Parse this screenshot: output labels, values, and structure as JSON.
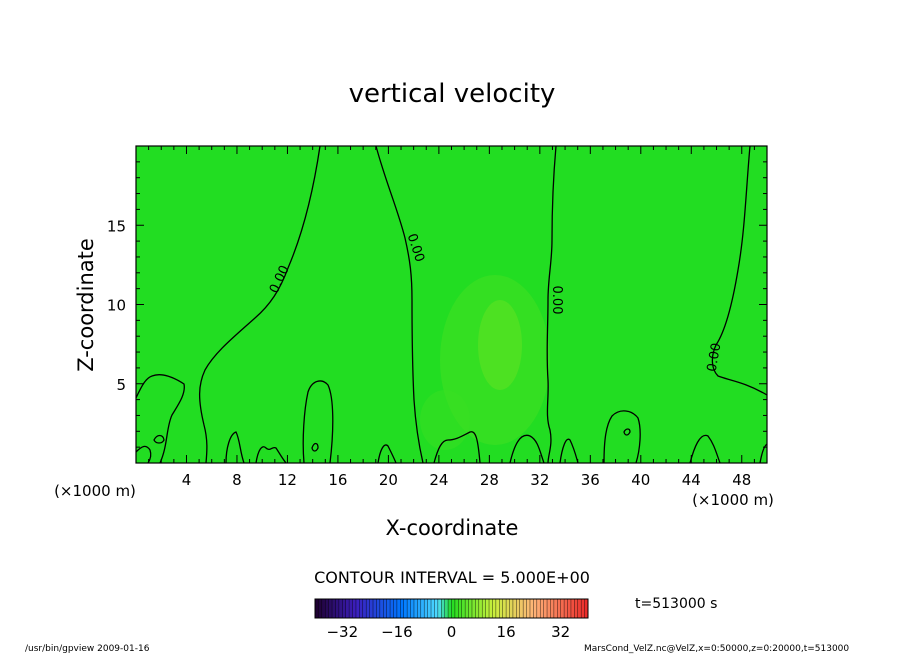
{
  "chart_data": {
    "type": "heatmap",
    "title": "vertical velocity",
    "xlabel": "X-coordinate",
    "ylabel": "Z-coordinate",
    "x_unit_left": "(×1000 m)",
    "x_unit_right": "(×1000 m)",
    "xlim": [
      0,
      50
    ],
    "ylim": [
      0,
      20
    ],
    "x_ticks": [
      "4",
      "8",
      "12",
      "16",
      "20",
      "24",
      "28",
      "32",
      "36",
      "40",
      "44",
      "48"
    ],
    "y_ticks": [
      "5",
      "10",
      "15"
    ],
    "contour_interval_text": "CONTOUR INTERVAL = 5.000E+00",
    "contour_labels": [
      "0.00",
      "0.00",
      "0.00",
      "0.00"
    ],
    "time_text": "t=513000 s",
    "colorbar": {
      "min": -40,
      "max": 40,
      "tick_labels": [
        "-32",
        "-16",
        "0",
        "16",
        "32"
      ],
      "tick_values": [
        -32,
        -16,
        0,
        16,
        32
      ]
    },
    "footer_left": "/usr/bin/gpview  2009-01-16",
    "footer_right": "MarsCond_VelZ.nc@VelZ,x=0:50000,z=0:20000,t=513000",
    "field_color": "#22dd22"
  }
}
